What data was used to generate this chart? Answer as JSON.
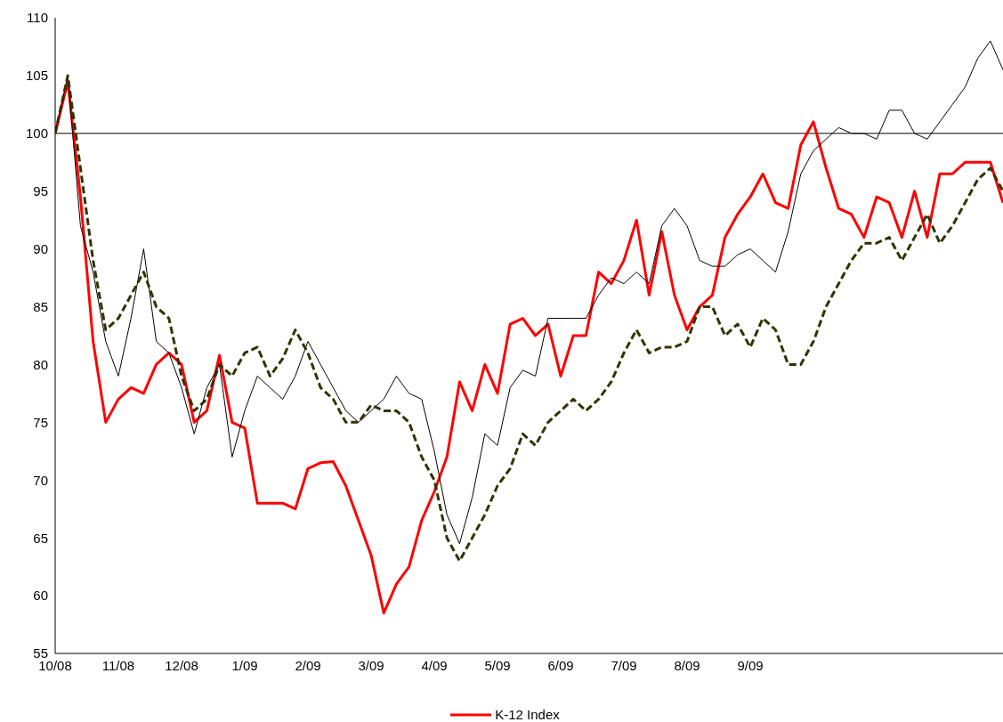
{
  "chart_data": {
    "type": "line",
    "categories": [
      "10/08",
      null,
      null,
      null,
      null,
      "11/08",
      null,
      null,
      null,
      null,
      "12/08",
      null,
      null,
      null,
      null,
      "1/09",
      null,
      null,
      null,
      null,
      "2/09",
      null,
      null,
      null,
      null,
      "3/09",
      null,
      null,
      null,
      null,
      "4/09",
      null,
      null,
      null,
      null,
      "5/09",
      null,
      null,
      null,
      null,
      "6/09",
      null,
      null,
      null,
      null,
      "7/09",
      null,
      null,
      null,
      null,
      "8/09",
      null,
      null,
      null,
      null,
      "9/09",
      null,
      null,
      null,
      null,
      null,
      null,
      null,
      null,
      null,
      null,
      null,
      null,
      null,
      null,
      null,
      null,
      null,
      null,
      null,
      null
    ],
    "series": [
      {
        "name": "K-12 Index",
        "color": "#ff0000",
        "line_style": "solid",
        "values": [
          100,
          104.5,
          94.5,
          82,
          75,
          77,
          78,
          77.5,
          80,
          81,
          80,
          75,
          76,
          80.8,
          75,
          74.5,
          68,
          68,
          68,
          67.5,
          71,
          71.5,
          71.6,
          69.5,
          66.5,
          63.5,
          58.5,
          61,
          62.5,
          66.5,
          69,
          72,
          78.5,
          76,
          80,
          77.5,
          83.5,
          84,
          82.5,
          83.5,
          79,
          82.5,
          82.5,
          88,
          87,
          89,
          92.5,
          86,
          91.5,
          86,
          83,
          85,
          86,
          91,
          93,
          94.5,
          96.5,
          94,
          93.5,
          99,
          101,
          97,
          93.5,
          93,
          91,
          94.5,
          94,
          91,
          95,
          91,
          96.5,
          96.5,
          97.5,
          97.5,
          97.5,
          94
        ]
      },
      {
        "color": "#000000",
        "line_style": "solid",
        "values": [
          100,
          105,
          92,
          88,
          82,
          79,
          84,
          90,
          82,
          81,
          78,
          74,
          78,
          80,
          72,
          76,
          79,
          78,
          77,
          79,
          82,
          80,
          78,
          76,
          75,
          76,
          77,
          79,
          77.5,
          77,
          72.5,
          67,
          64.5,
          68.5,
          74,
          73,
          78,
          79.5,
          79,
          84,
          84,
          84,
          84,
          86,
          87.5,
          87,
          88,
          87,
          92,
          93.5,
          92,
          89,
          88.5,
          88.5,
          89.5,
          90,
          89,
          88,
          91.5,
          96.5,
          98.5,
          99.5,
          100.5,
          100,
          100,
          99.5,
          102,
          102,
          100,
          99.5,
          101,
          102.5,
          104,
          106.5,
          108,
          105.5
        ]
      },
      {
        "color": "#333300",
        "line_style": "dashed",
        "values": [
          100,
          105,
          97,
          89,
          83,
          84,
          86,
          88,
          85,
          84,
          79,
          76,
          77,
          80,
          79,
          81,
          81.5,
          79,
          80.5,
          83,
          81,
          78,
          77,
          75,
          75,
          76.5,
          76,
          76,
          75,
          72,
          70,
          65,
          63,
          65,
          67,
          69.5,
          71,
          74,
          73,
          75,
          76,
          77,
          76,
          77,
          78.5,
          81,
          83,
          81,
          81.5,
          81.5,
          82,
          85,
          85,
          82.5,
          83.5,
          81.5,
          84,
          83,
          80,
          80,
          82,
          85,
          87,
          89,
          90.5,
          90.5,
          91,
          89,
          91,
          93,
          90.5,
          92,
          94,
          96,
          97,
          95
        ]
      }
    ],
    "ylim": [
      55,
      110
    ],
    "yticks": [
      55,
      60,
      65,
      70,
      75,
      80,
      85,
      90,
      95,
      100,
      105,
      110
    ],
    "ref_lines": [
      {
        "axis": "y",
        "value": 100,
        "color": "#000000"
      }
    ],
    "grid": false,
    "legend": "bottom",
    "marker": "none"
  }
}
